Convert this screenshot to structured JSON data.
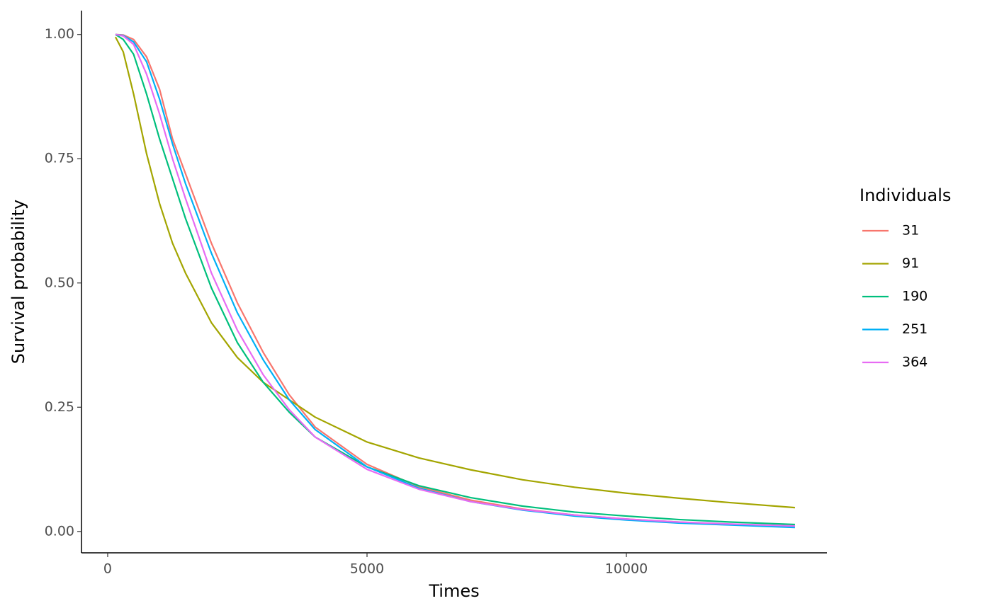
{
  "chart_data": {
    "type": "line",
    "x_label": "Times",
    "y_label": "Survival probability",
    "legend_title": "Individuals",
    "legend_position": "right",
    "grid": false,
    "x": [
      150,
      300,
      500,
      750,
      1000,
      1250,
      1500,
      2000,
      2500,
      3000,
      3500,
      4000,
      5000,
      6000,
      7000,
      8000,
      9000,
      10000,
      11000,
      12000,
      13250
    ],
    "series": [
      {
        "name": "31",
        "color": "#F8766D",
        "values": [
          1.0,
          0.999,
          0.99,
          0.955,
          0.89,
          0.79,
          0.72,
          0.58,
          0.46,
          0.36,
          0.275,
          0.21,
          0.135,
          0.09,
          0.063,
          0.045,
          0.033,
          0.025,
          0.019,
          0.014,
          0.01
        ]
      },
      {
        "name": "91",
        "color": "#A3A500",
        "values": [
          0.995,
          0.965,
          0.88,
          0.76,
          0.66,
          0.58,
          0.52,
          0.42,
          0.35,
          0.3,
          0.265,
          0.23,
          0.18,
          0.148,
          0.124,
          0.104,
          0.089,
          0.077,
          0.067,
          0.058,
          0.048
        ]
      },
      {
        "name": "190",
        "color": "#00BF7D",
        "values": [
          1.0,
          0.99,
          0.96,
          0.88,
          0.79,
          0.71,
          0.63,
          0.49,
          0.38,
          0.3,
          0.24,
          0.19,
          0.13,
          0.092,
          0.068,
          0.051,
          0.039,
          0.031,
          0.024,
          0.019,
          0.014
        ]
      },
      {
        "name": "251",
        "color": "#00B0F6",
        "values": [
          1.0,
          0.998,
          0.985,
          0.945,
          0.87,
          0.78,
          0.7,
          0.56,
          0.44,
          0.345,
          0.265,
          0.205,
          0.13,
          0.087,
          0.06,
          0.043,
          0.031,
          0.023,
          0.017,
          0.013,
          0.008
        ]
      },
      {
        "name": "364",
        "color": "#E76BF3",
        "values": [
          1.0,
          0.997,
          0.98,
          0.92,
          0.84,
          0.75,
          0.67,
          0.52,
          0.405,
          0.315,
          0.245,
          0.19,
          0.125,
          0.085,
          0.06,
          0.044,
          0.033,
          0.025,
          0.019,
          0.015,
          0.011
        ]
      }
    ],
    "xlim": [
      -505,
      13866
    ],
    "ylim": [
      -0.043,
      1.048
    ],
    "xticks": [
      0,
      5000,
      10000
    ],
    "yticks": [
      {
        "value": 0,
        "label": "0.00"
      },
      {
        "value": 0.25,
        "label": "0.25"
      },
      {
        "value": 0.5,
        "label": "0.50"
      },
      {
        "value": 0.75,
        "label": "0.75"
      },
      {
        "value": 1,
        "label": "1.00"
      }
    ]
  }
}
